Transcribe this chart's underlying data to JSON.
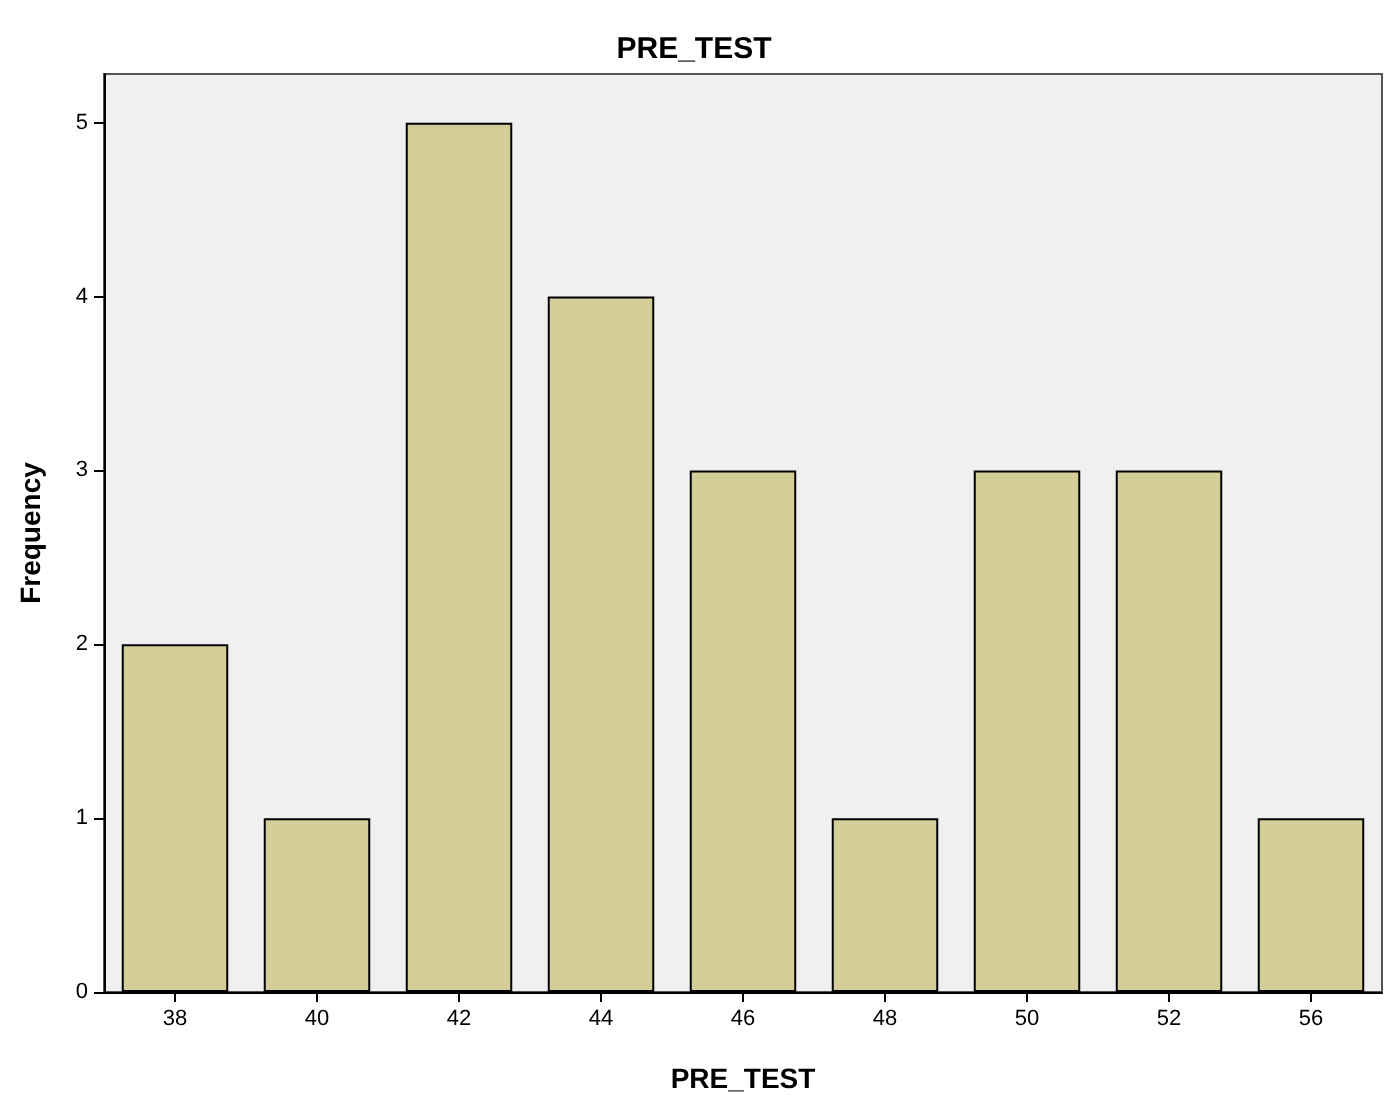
{
  "chart_data": {
    "type": "bar",
    "title": "PRE_TEST",
    "xlabel": "PRE_TEST",
    "ylabel": "Frequency",
    "categories": [
      "38",
      "40",
      "42",
      "44",
      "46",
      "48",
      "50",
      "52",
      "56"
    ],
    "values": [
      2,
      1,
      5,
      4,
      3,
      1,
      3,
      3,
      1
    ],
    "color": "#d3ce97",
    "ylim": [
      0,
      5.28
    ],
    "yticks": [
      0,
      1,
      2,
      3,
      4,
      5
    ],
    "grid": false
  }
}
